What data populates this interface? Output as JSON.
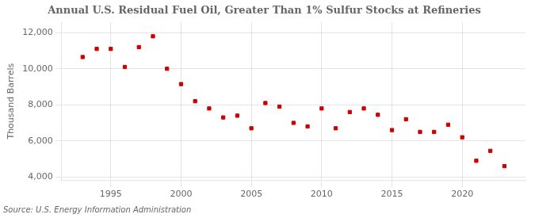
{
  "chart_data": {
    "type": "scatter",
    "title": "Annual U.S. Residual Fuel Oil, Greater Than 1% Sulfur Stocks at Refineries",
    "y_label": "Thousand Barrels",
    "annotations": [
      "Source: U.S. Energy Information Administration"
    ],
    "x": [
      1993,
      1994,
      1995,
      1996,
      1997,
      1998,
      1999,
      2000,
      2001,
      2002,
      2003,
      2004,
      2005,
      2006,
      2007,
      2008,
      2009,
      2010,
      2011,
      2012,
      2013,
      2014,
      2015,
      2016,
      2017,
      2018,
      2019,
      2020,
      2021,
      2022,
      2023
    ],
    "values": [
      10650,
      11100,
      11100,
      10100,
      11200,
      11800,
      10000,
      9150,
      8200,
      7800,
      7300,
      7400,
      6700,
      8100,
      7900,
      7000,
      6800,
      7800,
      6700,
      7600,
      7800,
      7450,
      6600,
      7200,
      6500,
      6500,
      6900,
      6200,
      4900,
      5450,
      4600
    ],
    "color": "#cc0000",
    "marker": "square",
    "xlim": [
      1991.5,
      2024.5
    ],
    "xticks": [
      1995,
      2000,
      2005,
      2010,
      2015,
      2020
    ],
    "ylim": [
      3800,
      12600
    ],
    "yticks": [
      {
        "value": 4000,
        "label": "4,000"
      },
      {
        "value": 6000,
        "label": "6,000"
      },
      {
        "value": 8000,
        "label": "8,000"
      },
      {
        "value": 10000,
        "label": "10,000"
      },
      {
        "value": 12000,
        "label": "12,000"
      }
    ],
    "grid": true
  }
}
